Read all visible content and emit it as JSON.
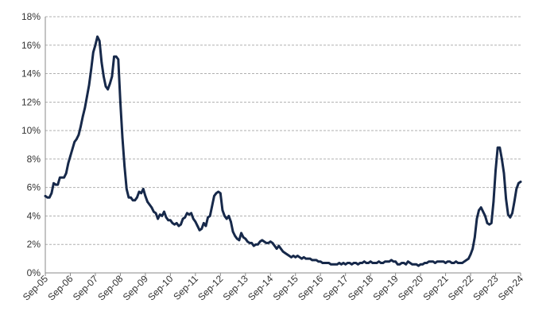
{
  "chart_data": {
    "type": "line",
    "title": "",
    "xlabel": "",
    "ylabel": "",
    "ylim": [
      0,
      18
    ],
    "y_ticks": [
      0,
      2,
      4,
      6,
      8,
      10,
      12,
      14,
      16,
      18
    ],
    "y_tick_labels": [
      "0%",
      "2%",
      "4%",
      "6%",
      "8%",
      "10%",
      "12%",
      "14%",
      "16%",
      "18%"
    ],
    "x_tick_labels": [
      "Sep-05",
      "Sep-06",
      "Sep-07",
      "Sep-08",
      "Sep-09",
      "Sep-10",
      "Sep-11",
      "Sep-12",
      "Sep-13",
      "Sep-14",
      "Sep-15",
      "Sep-16",
      "Sep-17",
      "Sep-18",
      "Sep-19",
      "Sep-20",
      "Sep-21",
      "Sep-22",
      "Sep-23",
      "Sep-24"
    ],
    "grid": true,
    "legend": "none",
    "line_color": "#17294a",
    "series": [
      {
        "x": [
          "2005-09",
          "2005-10",
          "2005-11",
          "2005-12",
          "2006-01",
          "2006-02",
          "2006-03",
          "2006-04",
          "2006-05",
          "2006-06",
          "2006-07",
          "2006-08",
          "2006-09",
          "2006-10",
          "2006-11",
          "2006-12",
          "2007-01",
          "2007-02",
          "2007-03",
          "2007-04",
          "2007-05",
          "2007-06",
          "2007-07",
          "2007-08",
          "2007-09",
          "2007-10",
          "2007-11",
          "2007-12",
          "2008-01",
          "2008-02",
          "2008-03",
          "2008-04",
          "2008-05",
          "2008-06",
          "2008-07",
          "2008-08",
          "2008-09",
          "2008-10",
          "2008-11",
          "2008-12",
          "2009-01",
          "2009-02",
          "2009-03",
          "2009-04",
          "2009-05",
          "2009-06",
          "2009-07",
          "2009-08",
          "2009-09",
          "2009-10",
          "2009-11",
          "2009-12",
          "2010-01",
          "2010-02",
          "2010-03",
          "2010-04",
          "2010-05",
          "2010-06",
          "2010-07",
          "2010-08",
          "2010-09",
          "2010-10",
          "2010-11",
          "2010-12",
          "2011-01",
          "2011-02",
          "2011-03",
          "2011-04",
          "2011-05",
          "2011-06",
          "2011-07",
          "2011-08",
          "2011-09",
          "2011-10",
          "2011-11",
          "2011-12",
          "2012-01",
          "2012-02",
          "2012-03",
          "2012-04",
          "2012-05",
          "2012-06",
          "2012-07",
          "2012-08",
          "2012-09",
          "2012-10",
          "2012-11",
          "2012-12",
          "2013-01",
          "2013-02",
          "2013-03",
          "2013-04",
          "2013-05",
          "2013-06",
          "2013-07",
          "2013-08",
          "2013-09",
          "2013-10",
          "2013-11",
          "2013-12",
          "2014-01",
          "2014-02",
          "2014-03",
          "2014-04",
          "2014-05",
          "2014-06",
          "2014-07",
          "2014-08",
          "2014-09",
          "2014-10",
          "2014-11",
          "2014-12",
          "2015-01",
          "2015-02",
          "2015-03",
          "2015-04",
          "2015-05",
          "2015-06",
          "2015-07",
          "2015-08",
          "2015-09",
          "2015-10",
          "2015-11",
          "2015-12",
          "2016-01",
          "2016-02",
          "2016-03",
          "2016-04",
          "2016-05",
          "2016-06",
          "2016-07",
          "2016-08",
          "2016-09",
          "2016-10",
          "2016-11",
          "2016-12",
          "2017-01",
          "2017-02",
          "2017-03",
          "2017-04",
          "2017-05",
          "2017-06",
          "2017-07",
          "2017-08",
          "2017-09",
          "2017-10",
          "2017-11",
          "2017-12",
          "2018-01",
          "2018-02",
          "2018-03",
          "2018-04",
          "2018-05",
          "2018-06",
          "2018-07",
          "2018-08",
          "2018-09",
          "2018-10",
          "2018-11",
          "2018-12",
          "2019-01",
          "2019-02",
          "2019-03",
          "2019-04",
          "2019-05",
          "2019-06",
          "2019-07",
          "2019-08",
          "2019-09",
          "2019-10",
          "2019-11",
          "2019-12",
          "2020-01",
          "2020-02",
          "2020-03",
          "2020-04",
          "2020-05",
          "2020-06",
          "2020-07",
          "2020-08",
          "2020-09",
          "2020-10",
          "2020-11",
          "2020-12",
          "2021-01",
          "2021-02",
          "2021-03",
          "2021-04",
          "2021-05",
          "2021-06",
          "2021-07",
          "2021-08",
          "2021-09",
          "2021-10",
          "2021-11",
          "2021-12",
          "2022-01",
          "2022-02",
          "2022-03",
          "2022-04",
          "2022-05",
          "2022-06",
          "2022-07",
          "2022-08",
          "2022-09",
          "2022-10",
          "2022-11",
          "2022-12",
          "2023-01",
          "2023-02",
          "2023-03",
          "2023-04",
          "2023-05",
          "2023-06",
          "2023-07",
          "2023-08",
          "2023-09",
          "2023-10",
          "2023-11",
          "2023-12",
          "2024-01",
          "2024-02",
          "2024-03",
          "2024-04",
          "2024-05",
          "2024-06",
          "2024-07",
          "2024-08",
          "2024-09"
        ],
        "values": [
          5.4,
          5.3,
          5.3,
          5.6,
          6.3,
          6.2,
          6.2,
          6.7,
          6.7,
          6.7,
          7.0,
          7.7,
          8.2,
          8.7,
          9.2,
          9.4,
          9.7,
          10.3,
          11.0,
          11.6,
          12.4,
          13.2,
          14.3,
          15.5,
          16.0,
          16.6,
          16.3,
          14.8,
          13.8,
          13.1,
          12.9,
          13.3,
          13.8,
          15.2,
          15.2,
          15.0,
          12.0,
          9.5,
          7.5,
          5.9,
          5.3,
          5.3,
          5.1,
          5.1,
          5.3,
          5.7,
          5.6,
          5.9,
          5.4,
          5.0,
          4.8,
          4.6,
          4.3,
          4.2,
          3.8,
          4.1,
          4.0,
          4.3,
          3.9,
          3.7,
          3.7,
          3.5,
          3.4,
          3.5,
          3.3,
          3.4,
          3.8,
          3.9,
          4.2,
          4.1,
          4.2,
          3.8,
          3.6,
          3.3,
          3.0,
          3.1,
          3.5,
          3.3,
          3.9,
          4.0,
          4.7,
          5.4,
          5.6,
          5.7,
          5.6,
          4.4,
          4.0,
          3.8,
          4.0,
          3.6,
          2.9,
          2.6,
          2.4,
          2.3,
          2.8,
          2.5,
          2.4,
          2.2,
          2.1,
          2.1,
          1.9,
          2.0,
          2.0,
          2.2,
          2.3,
          2.2,
          2.1,
          2.1,
          2.2,
          2.1,
          1.9,
          1.7,
          1.9,
          1.7,
          1.5,
          1.4,
          1.3,
          1.2,
          1.1,
          1.2,
          1.1,
          1.2,
          1.1,
          1.0,
          1.1,
          1.0,
          1.0,
          1.0,
          0.9,
          0.9,
          0.9,
          0.8,
          0.8,
          0.7,
          0.7,
          0.7,
          0.7,
          0.6,
          0.6,
          0.6,
          0.6,
          0.7,
          0.6,
          0.7,
          0.6,
          0.7,
          0.7,
          0.6,
          0.7,
          0.7,
          0.6,
          0.7,
          0.7,
          0.8,
          0.7,
          0.7,
          0.8,
          0.7,
          0.7,
          0.7,
          0.8,
          0.7,
          0.7,
          0.8,
          0.8,
          0.8,
          0.9,
          0.8,
          0.8,
          0.6,
          0.6,
          0.7,
          0.7,
          0.6,
          0.8,
          0.7,
          0.6,
          0.6,
          0.6,
          0.5,
          0.6,
          0.6,
          0.7,
          0.7,
          0.8,
          0.8,
          0.8,
          0.7,
          0.8,
          0.8,
          0.8,
          0.8,
          0.7,
          0.8,
          0.8,
          0.7,
          0.7,
          0.8,
          0.7,
          0.7,
          0.7,
          0.8,
          0.9,
          1.0,
          1.3,
          1.7,
          2.5,
          3.8,
          4.4,
          4.6,
          4.3,
          4.0,
          3.5,
          3.4,
          3.5,
          5.0,
          7.2,
          8.8,
          8.8,
          8.0,
          7.0,
          5.2,
          4.1,
          3.9,
          4.2,
          5.0,
          5.9,
          6.3,
          6.4
        ]
      }
    ]
  }
}
